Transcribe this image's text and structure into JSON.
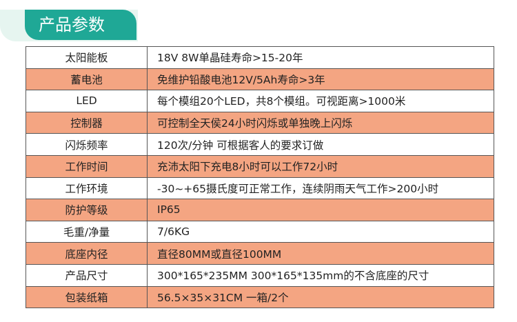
{
  "header": {
    "title": "产品参数"
  },
  "table": {
    "rows": [
      [
        "太阳能板",
        "18V  8W单晶硅寿命>15-20年"
      ],
      [
        "蓄电池",
        "免维护铅酸电池12V/5Ah寿命>3年"
      ],
      [
        "LED",
        "每个模组20个LED，共8个模组。可视距离>1000米"
      ],
      [
        "控制器",
        "可控制全天侯24小时闪烁或单独晚上闪烁"
      ],
      [
        "闪烁频率",
        "120次/分钟 可根据客人的要求订做"
      ],
      [
        "工作时间",
        "充沛太阳下充电8小时可以工作72小时"
      ],
      [
        "工作环境",
        "-30~+65摄氏度可正常工作，连续阴雨天气工作>200小时"
      ],
      [
        "防护等级",
        "IP65"
      ],
      [
        "毛重/净量",
        "7/6KG"
      ],
      [
        "底座内径",
        "直径80MM或直径100MM"
      ],
      [
        "产品尺寸",
        "300*165*235MM  300*165*135mm的不含底座的尺寸"
      ],
      [
        "包装纸箱",
        "56.5×35×31CM 一箱/2个"
      ]
    ]
  }
}
